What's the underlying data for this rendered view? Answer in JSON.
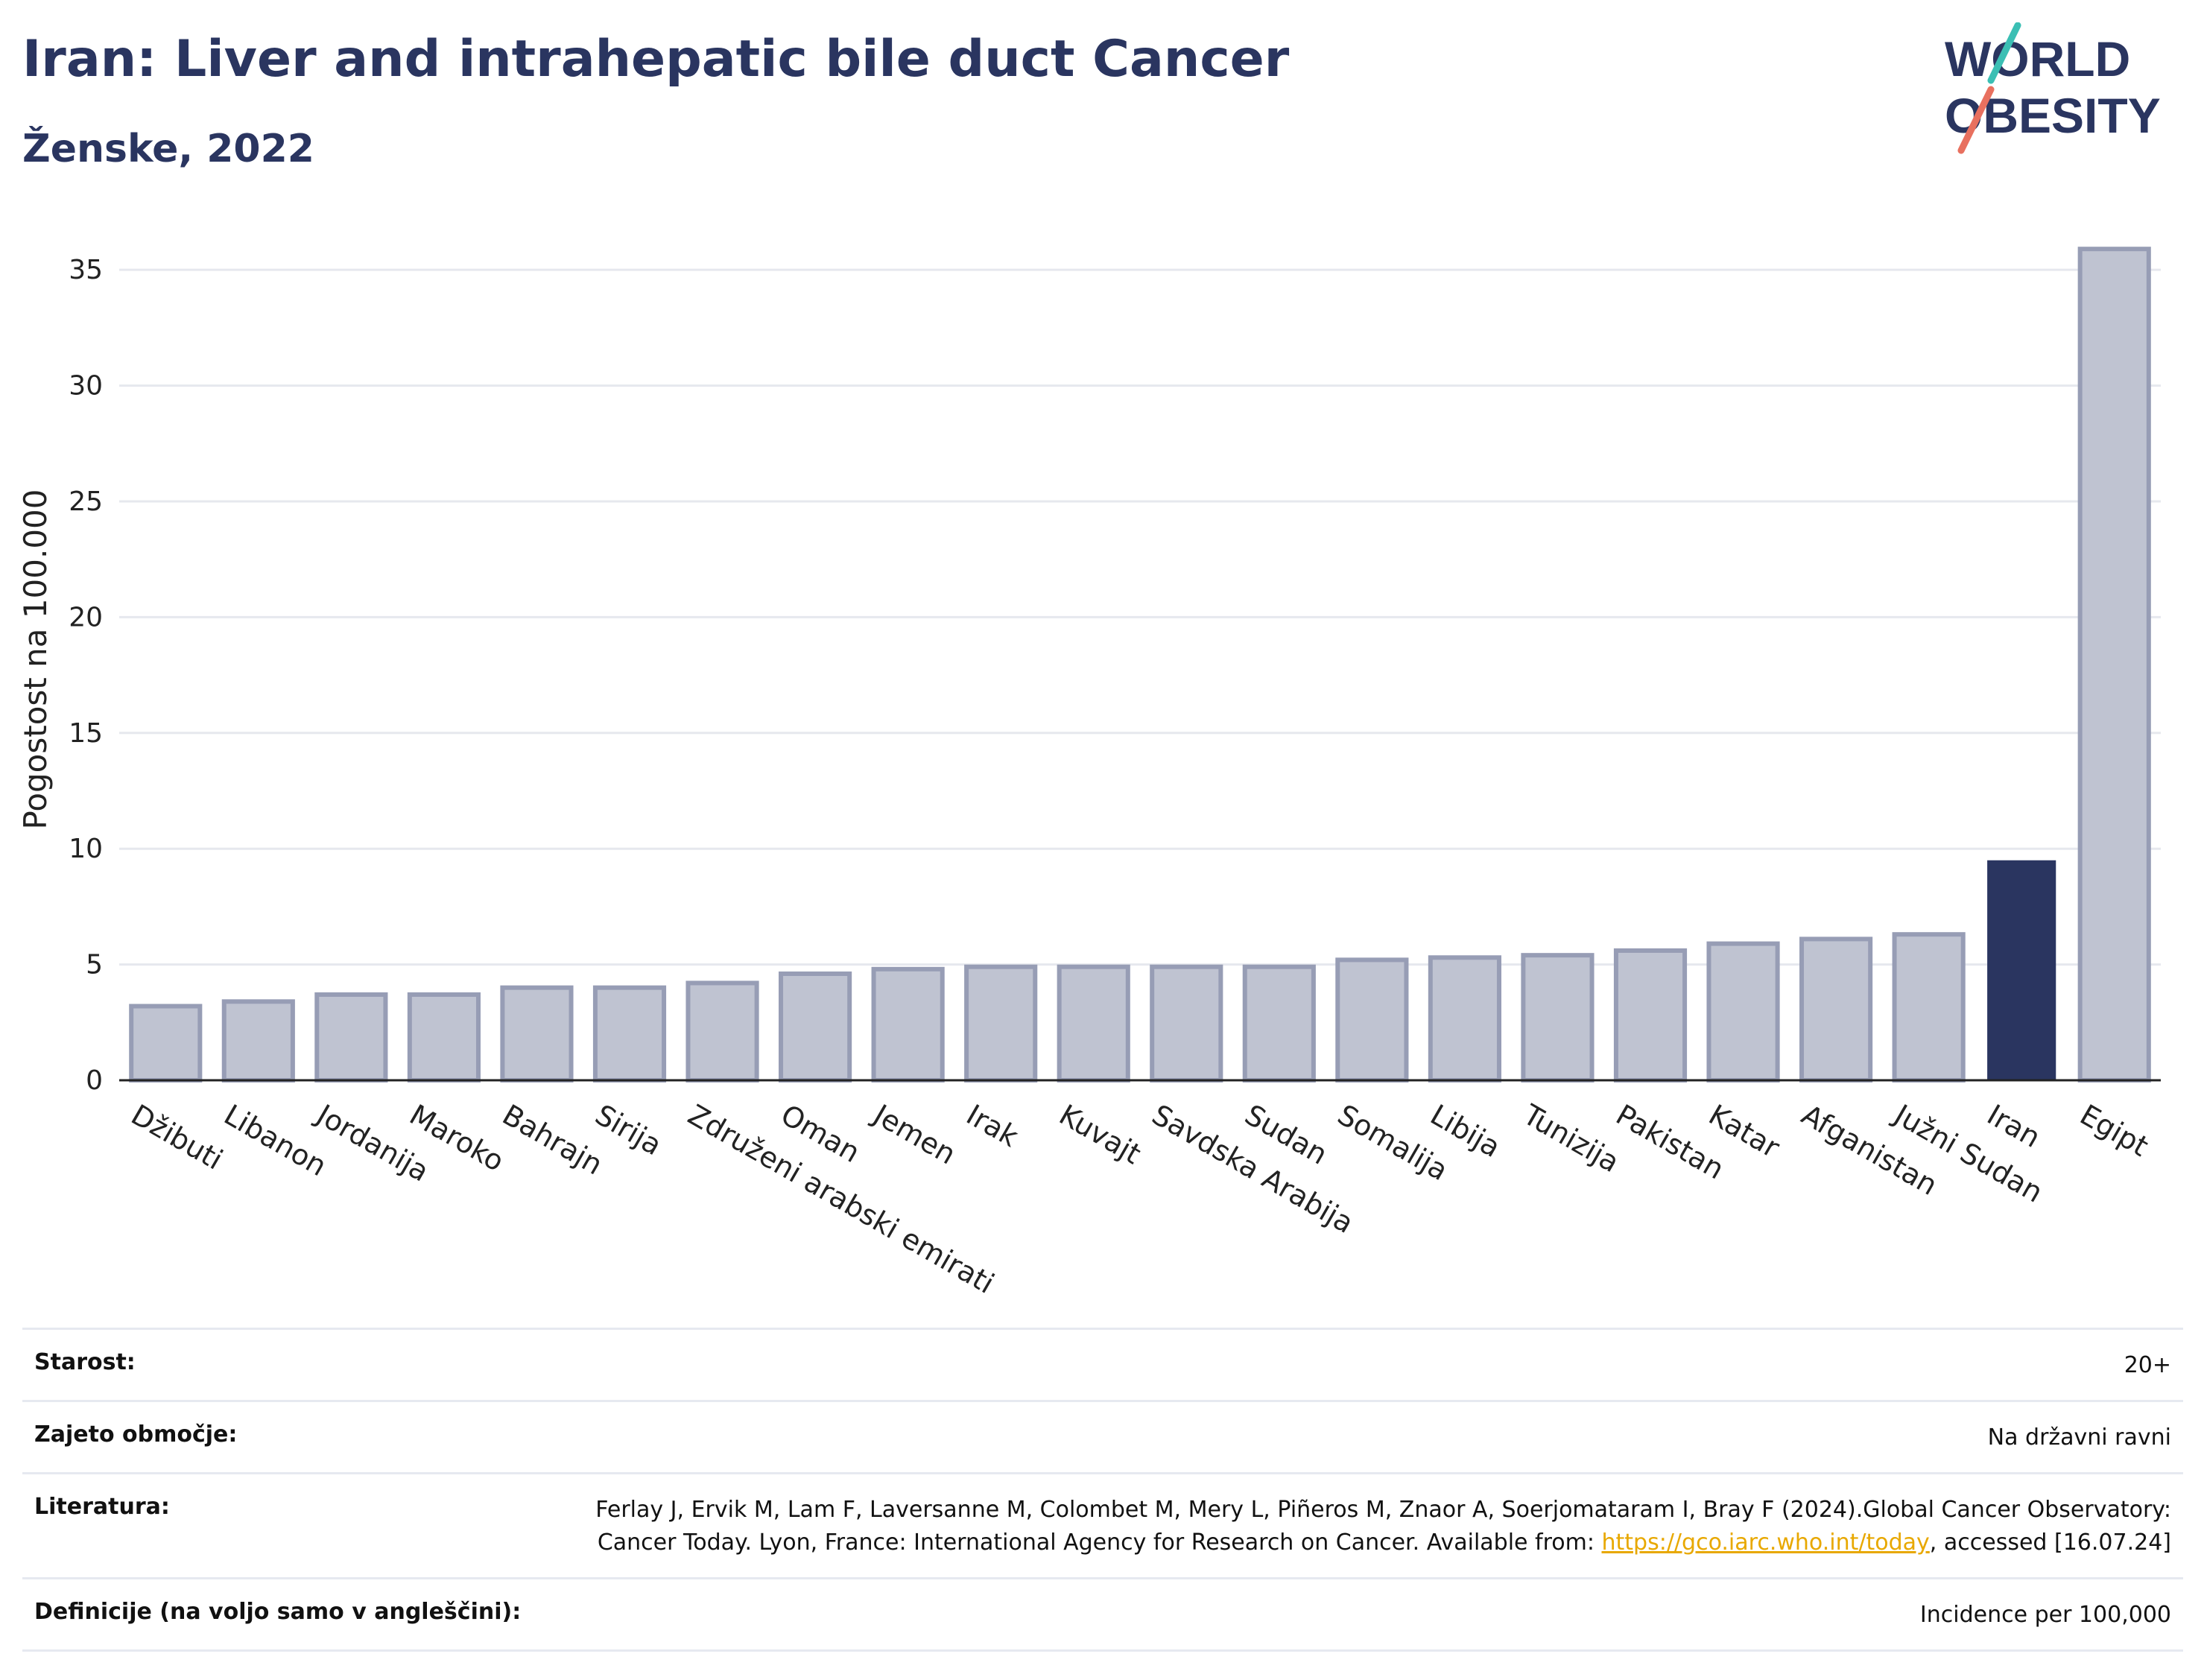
{
  "header": {
    "title": "Iran: Liver and intrahepatic bile duct Cancer",
    "subtitle": "Ženske, 2022"
  },
  "logo": {
    "line1": "WORLD",
    "line2": "OBESITY",
    "stroke_colors": [
      "#3bbfb4",
      "#e8705f"
    ],
    "text_color": "#2a3560"
  },
  "colors": {
    "bar": "#bfc3d1",
    "bar_border": "#979db5",
    "highlight": "#2a3560",
    "grid": "#e6e8ee",
    "axis": "#222222"
  },
  "chart_data": {
    "type": "bar",
    "ylabel": "Pogostost na 100.000",
    "ylim": [
      0,
      37
    ],
    "yticks": [
      0,
      5,
      10,
      15,
      20,
      25,
      30,
      35
    ],
    "grid": true,
    "highlight": "Iran",
    "categories": [
      "Džibuti",
      "Libanon",
      "Jordanija",
      "Maroko",
      "Bahrajn",
      "Sirija",
      "Združeni arabski emirati",
      "Oman",
      "Jemen",
      "Irak",
      "Kuvajt",
      "Savdska Arabija",
      "Sudan",
      "Somalija",
      "Libija",
      "Tunizija",
      "Pakistan",
      "Katar",
      "Afganistan",
      "Južni Sudan",
      "Iran",
      "Egipt"
    ],
    "values": [
      3.2,
      3.4,
      3.7,
      3.7,
      4.0,
      4.0,
      4.2,
      4.6,
      4.8,
      4.9,
      4.9,
      4.9,
      4.9,
      5.2,
      5.3,
      5.4,
      5.6,
      5.9,
      6.1,
      6.3,
      9.5,
      35.9
    ]
  },
  "info": {
    "rows": [
      {
        "label": "Starost:",
        "value": "20+"
      },
      {
        "label": "Zajeto območje:",
        "value": "Na državni ravni"
      },
      {
        "label": "Literatura:",
        "value_before": "Ferlay J, Ervik M, Lam F, Laversanne M, Colombet M, Mery L, Piñeros M, Znaor A, Soerjomataram I, Bray F (2024).Global Cancer Observatory: Cancer Today. Lyon, France: International Agency for Research on Cancer. Available from: ",
        "link": "https://gco.iarc.who.int/today",
        "value_after": ", accessed [16.07.24]"
      },
      {
        "label": "Definicije (na voljo samo v angleščini):",
        "value": "Incidence per 100,000"
      }
    ]
  }
}
